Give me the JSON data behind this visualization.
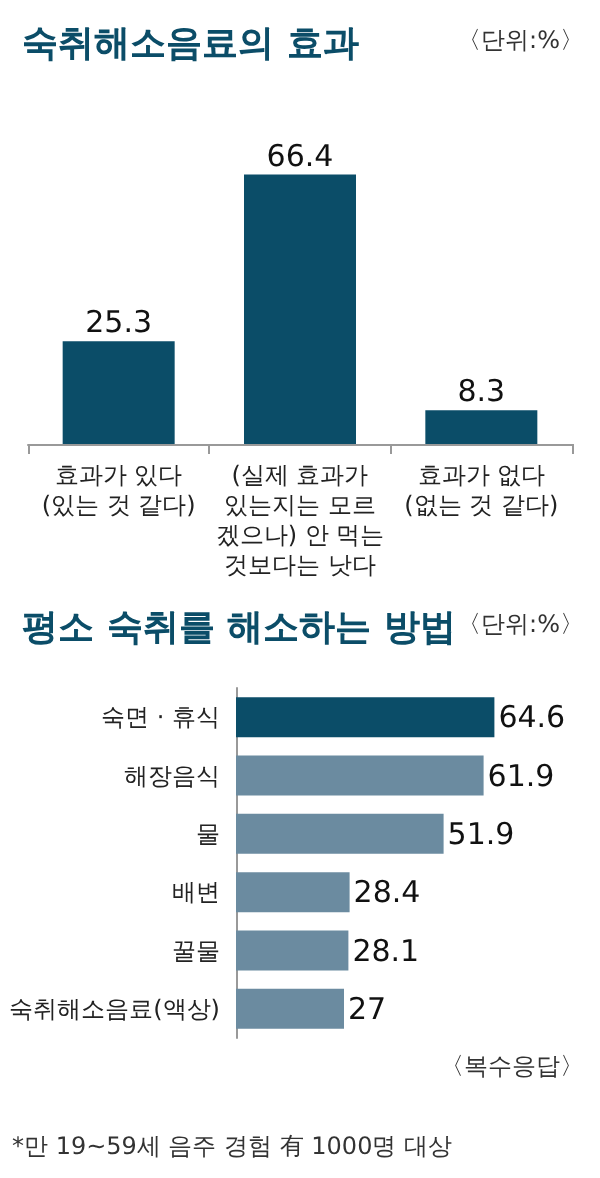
{
  "chart_data": [
    {
      "type": "bar",
      "title": "숙취해소음료의 효과",
      "categories": [
        "효과가 있다\n(있는 것 같다)",
        "(실제 효과가\n있는지는 모르\n겠으나) 안 먹는\n것보다는 낫다",
        "효과가 없다\n(없는 것 같다)"
      ],
      "values": [
        25.3,
        66.4,
        8.3
      ],
      "color": "#0b4d68",
      "data_labels": true,
      "annotations": [
        "〈단위:%〉"
      ]
    },
    {
      "type": "bar",
      "orientation": "horizontal",
      "title": "평소 숙취를 해소하는 방법",
      "categories": [
        "숙면 · 휴식",
        "해장음식",
        "물",
        "배변",
        "꿀물",
        "숙취해소음료(액상)"
      ],
      "values": [
        64.6,
        61.9,
        51.9,
        28.4,
        28.1,
        27
      ],
      "colors": [
        "#0b4d68",
        "#6b8ba0",
        "#6b8ba0",
        "#6b8ba0",
        "#6b8ba0",
        "#6b8ba0"
      ],
      "data_labels": true,
      "annotations": [
        "〈단위:%〉",
        "〈복수응답〉",
        "*만 19~59세 음주 경험 有 1000명 대상"
      ]
    }
  ]
}
